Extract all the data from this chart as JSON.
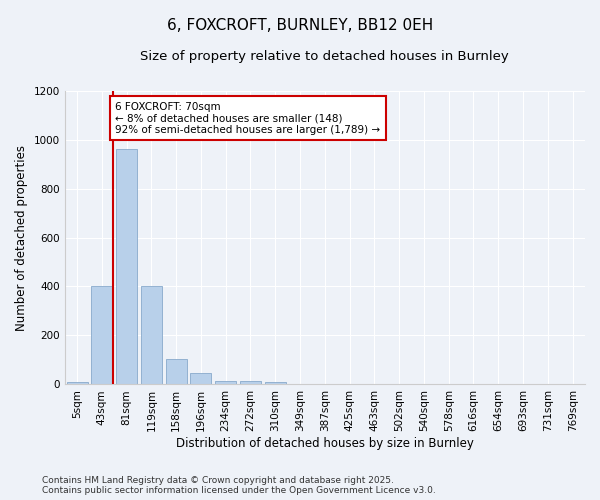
{
  "title": "6, FOXCROFT, BURNLEY, BB12 0EH",
  "subtitle": "Size of property relative to detached houses in Burnley",
  "xlabel": "Distribution of detached houses by size in Burnley",
  "ylabel": "Number of detached properties",
  "bins": [
    "5sqm",
    "43sqm",
    "81sqm",
    "119sqm",
    "158sqm",
    "196sqm",
    "234sqm",
    "272sqm",
    "310sqm",
    "349sqm",
    "387sqm",
    "425sqm",
    "463sqm",
    "502sqm",
    "540sqm",
    "578sqm",
    "616sqm",
    "654sqm",
    "693sqm",
    "731sqm",
    "769sqm"
  ],
  "bar_heights": [
    10,
    400,
    960,
    400,
    105,
    45,
    15,
    15,
    8,
    2,
    0,
    0,
    0,
    2,
    0,
    0,
    0,
    0,
    0,
    0,
    0
  ],
  "bar_color": "#b8d0ea",
  "bar_edge_color": "#88aacc",
  "vline_x": 1.45,
  "vline_color": "#cc0000",
  "annotation_text": "6 FOXCROFT: 70sqm\n← 8% of detached houses are smaller (148)\n92% of semi-detached houses are larger (1,789) →",
  "annotation_box_color": "#ffffff",
  "annotation_box_edge": "#cc0000",
  "ylim": [
    0,
    1200
  ],
  "yticks": [
    0,
    200,
    400,
    600,
    800,
    1000,
    1200
  ],
  "background_color": "#eef2f8",
  "plot_bg_color": "#eef2f8",
  "footer": "Contains HM Land Registry data © Crown copyright and database right 2025.\nContains public sector information licensed under the Open Government Licence v3.0.",
  "title_fontsize": 11,
  "subtitle_fontsize": 9.5,
  "xlabel_fontsize": 8.5,
  "ylabel_fontsize": 8.5,
  "tick_fontsize": 7.5,
  "footer_fontsize": 6.5,
  "ann_fontsize": 7.5
}
